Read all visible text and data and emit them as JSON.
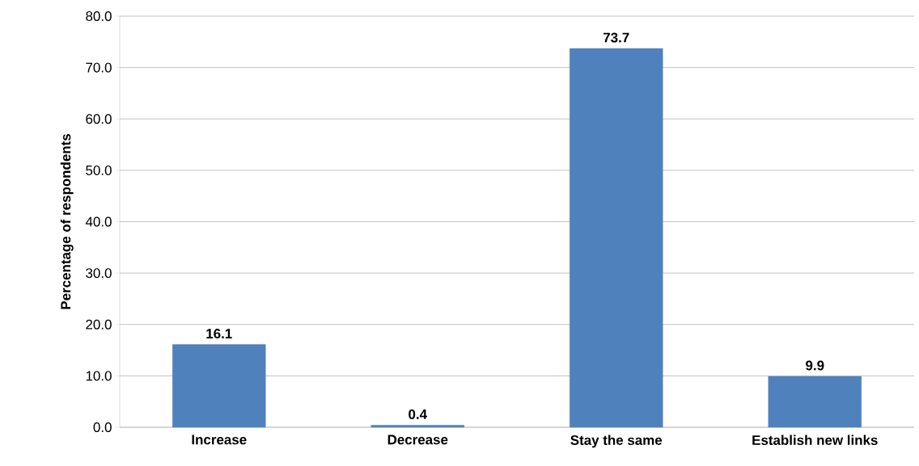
{
  "chart_data": {
    "type": "bar",
    "ylabel": "Percentage of respondents",
    "categories": [
      "Increase",
      "Decrease",
      "Stay the same",
      "Establish new links"
    ],
    "values": [
      16.1,
      0.4,
      73.7,
      9.9
    ],
    "color": "#4f81bd",
    "ylim": [
      0,
      80
    ],
    "yticks": [
      {
        "value": 0,
        "label": "0.0"
      },
      {
        "value": 10,
        "label": "10.0"
      },
      {
        "value": 20,
        "label": "20.0"
      },
      {
        "value": 30,
        "label": "30.0"
      },
      {
        "value": 40,
        "label": "40.0"
      },
      {
        "value": 50,
        "label": "50.0"
      },
      {
        "value": 60,
        "label": "60.0"
      },
      {
        "value": 70,
        "label": "70.0"
      },
      {
        "value": 80,
        "label": "80.0"
      }
    ],
    "grid": "y",
    "data_labels": true
  }
}
